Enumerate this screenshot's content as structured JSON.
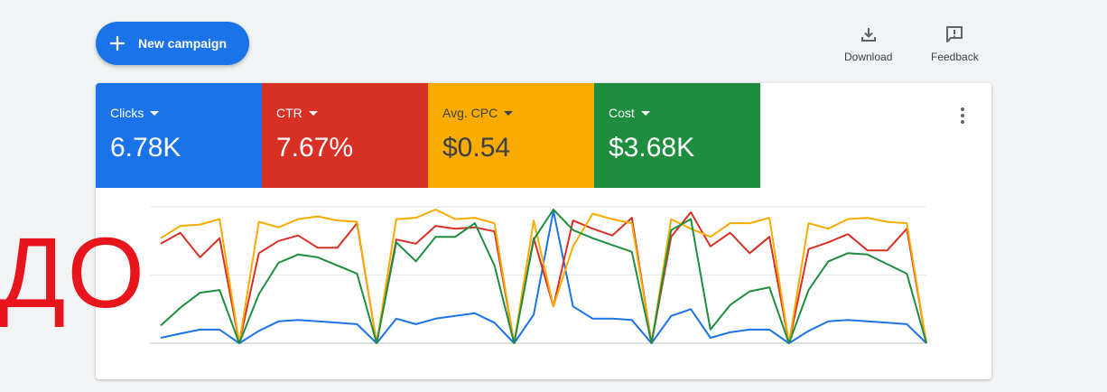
{
  "toolbar": {
    "new_campaign_label": "New campaign",
    "download_label": "Download",
    "feedback_label": "Feedback"
  },
  "metrics": [
    {
      "name": "Clicks",
      "value": "6.78K",
      "color": "#1a73e8"
    },
    {
      "name": "CTR",
      "value": "7.67%",
      "color": "#d93025"
    },
    {
      "name": "Avg. CPC",
      "value": "$0.54",
      "color": "#f9ab00"
    },
    {
      "name": "Cost",
      "value": "$3.68K",
      "color": "#1e8e3e"
    }
  ],
  "overlay_text": "ДО",
  "chart_data": {
    "type": "line",
    "x": [
      1,
      2,
      3,
      4,
      5,
      6,
      7,
      8,
      9,
      10,
      11,
      12,
      13,
      14,
      15,
      16,
      17,
      18,
      19,
      20,
      21,
      22,
      23,
      24,
      25,
      26,
      27,
      28,
      29,
      30,
      31,
      32,
      33,
      34,
      35,
      36,
      37,
      38,
      39,
      40
    ],
    "ylim": [
      0,
      100
    ],
    "grid": true,
    "series": [
      {
        "color": "#1a73e8",
        "values": [
          4,
          7,
          10,
          10,
          0,
          9,
          16,
          17,
          16,
          15,
          14,
          0,
          18,
          14,
          18,
          20,
          22,
          15,
          0,
          21,
          97,
          27,
          18,
          18,
          17,
          0,
          20,
          25,
          4,
          8,
          10,
          10,
          0,
          9,
          16,
          17,
          16,
          15,
          14,
          0
        ]
      },
      {
        "color": "#d93025",
        "values": [
          73,
          81,
          63,
          77,
          0,
          66,
          75,
          79,
          70,
          70,
          88,
          0,
          76,
          73,
          86,
          84,
          85,
          82,
          0,
          77,
          27,
          90,
          84,
          79,
          92,
          0,
          78,
          96,
          71,
          81,
          66,
          78,
          0,
          69,
          74,
          80,
          68,
          68,
          84,
          0
        ]
      },
      {
        "color": "#f9ab00",
        "values": [
          77,
          86,
          87,
          91,
          0,
          89,
          85,
          91,
          93,
          90,
          89,
          0,
          91,
          92,
          98,
          91,
          92,
          88,
          0,
          90,
          27,
          71,
          95,
          91,
          88,
          0,
          91,
          84,
          78,
          88,
          88,
          92,
          0,
          88,
          84,
          91,
          92,
          89,
          88,
          0
        ]
      },
      {
        "color": "#1e8e3e",
        "values": [
          13,
          26,
          37,
          39,
          0,
          36,
          59,
          65,
          63,
          57,
          51,
          0,
          74,
          60,
          78,
          78,
          88,
          57,
          0,
          76,
          98,
          83,
          77,
          72,
          67,
          0,
          83,
          91,
          10,
          28,
          38,
          41,
          0,
          39,
          60,
          66,
          65,
          58,
          51,
          0
        ]
      }
    ]
  }
}
